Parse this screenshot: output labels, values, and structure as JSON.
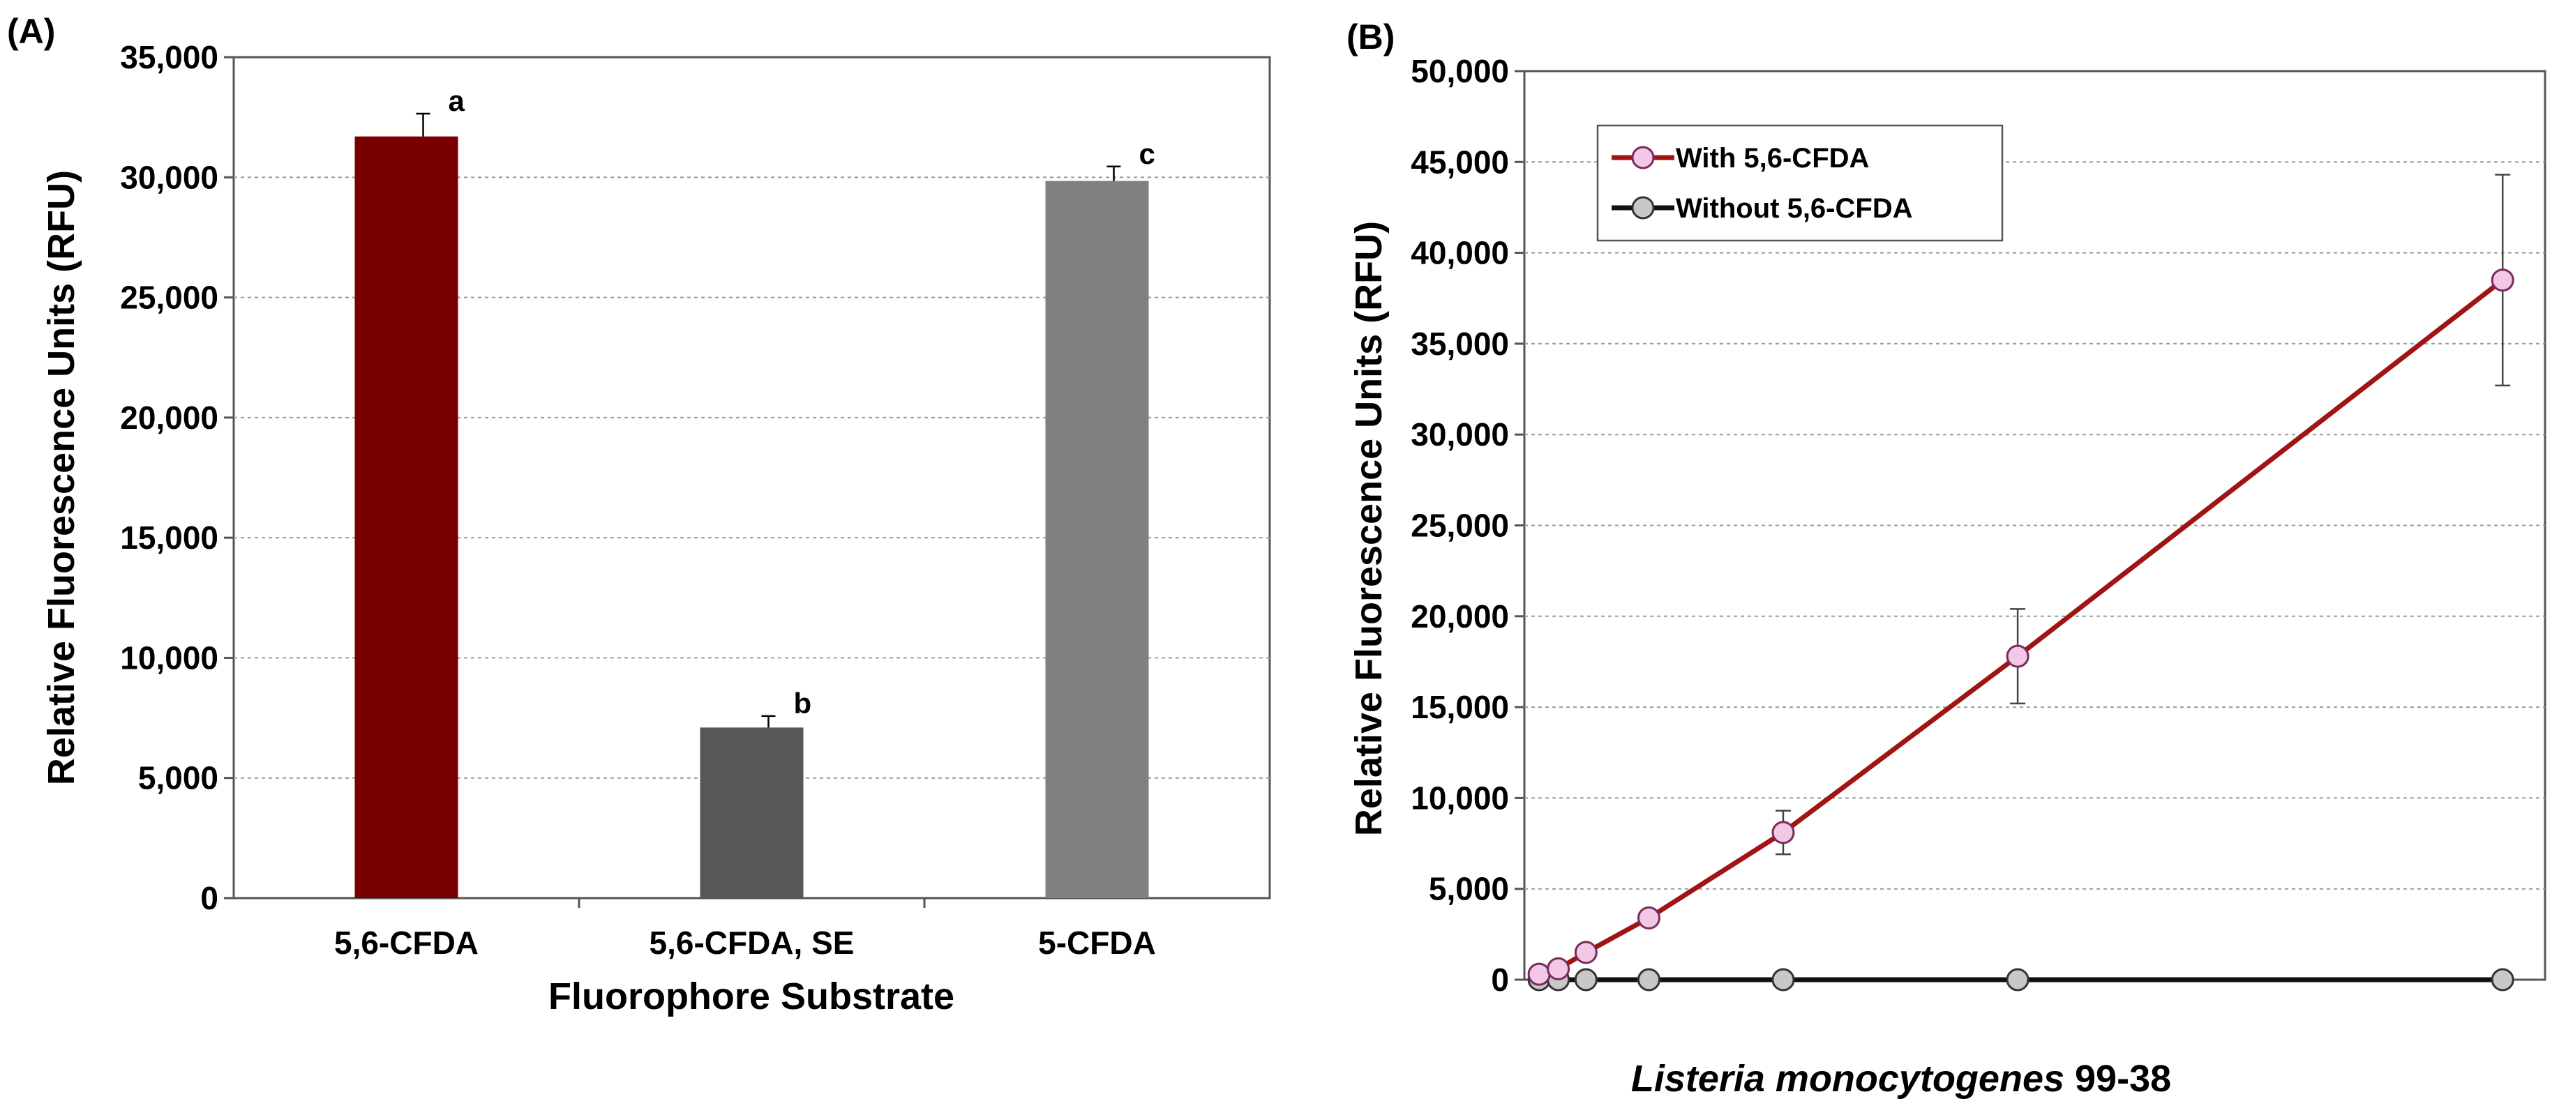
{
  "chart_data": [
    {
      "panel_label": "(A)",
      "type": "bar",
      "xlabel": "Fluorophore Substrate",
      "ylabel": "Relative Fluorescence Units (RFU)",
      "ylim": [
        0,
        35000
      ],
      "yticks": [
        "0",
        "5,000",
        "10,000",
        "15,000",
        "20,000",
        "25,000",
        "30,000",
        "35,000"
      ],
      "ytick_values": [
        0,
        5000,
        10000,
        15000,
        20000,
        25000,
        30000,
        35000
      ],
      "grid": true,
      "categories": [
        "5,6-CFDA",
        "5,6-CFDA, SE",
        "5-CFDA"
      ],
      "values": [
        31700,
        7100,
        29850
      ],
      "errors": [
        950,
        480,
        600
      ],
      "letters": [
        "a",
        "b",
        "c"
      ],
      "colors": [
        "#7a0000",
        "#575757",
        "#808080"
      ]
    },
    {
      "panel_label": "(B)",
      "type": "line",
      "xlabel_italic": "Listeria monocytogenes",
      "xlabel_rest": " 99-38",
      "ylabel": "Relative Fluorescence Units (RFU)",
      "ylim": [
        0,
        50000
      ],
      "yticks": [
        "0",
        "5,000",
        "10,000",
        "15,000",
        "20,000",
        "25,000",
        "30,000",
        "35,000",
        "40,000",
        "45,000",
        "50,000"
      ],
      "ytick_values": [
        0,
        5000,
        10000,
        15000,
        20000,
        25000,
        30000,
        35000,
        40000,
        45000,
        50000
      ],
      "xlim": [
        0,
        900
      ],
      "grid": true,
      "legend_position": "top-left",
      "series": [
        {
          "name": "With 5,6-CFDA",
          "line_color": "#a01414",
          "marker_fill": "#f2c8e6",
          "marker_edge": "#7a2a5a",
          "x": [
            4,
            22,
            48,
            107,
            233,
            453,
            908
          ],
          "y": [
            300,
            600,
            1500,
            3400,
            8100,
            17800,
            38500
          ],
          "errors": [
            0,
            0,
            250,
            250,
            1200,
            2600,
            5800
          ]
        },
        {
          "name": "Without 5,6-CFDA",
          "line_color": "#111111",
          "marker_fill": "#c8c8c8",
          "marker_edge": "#333333",
          "x": [
            4,
            22,
            48,
            107,
            233,
            453,
            908
          ],
          "y": [
            0,
            0,
            0,
            0,
            0,
            0,
            0
          ],
          "errors": [
            0,
            0,
            0,
            0,
            0,
            0,
            0
          ]
        }
      ]
    }
  ]
}
